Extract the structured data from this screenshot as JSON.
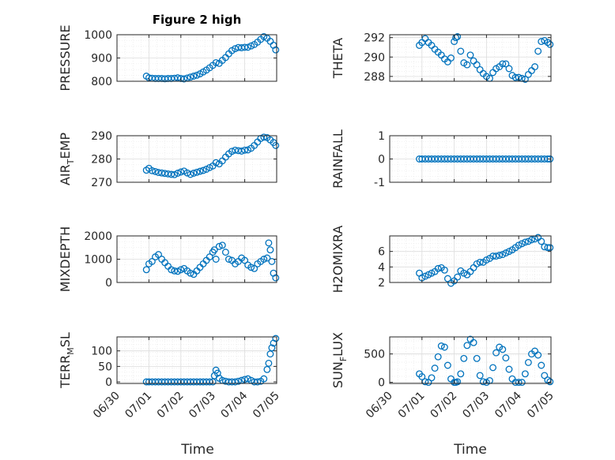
{
  "chart_data": [
    {
      "type": "scatter",
      "title": "Figure 2 high",
      "ylabel": "PRESSURE",
      "ylim": [
        800,
        1000
      ],
      "yticks": [
        "800",
        "900",
        "1000"
      ],
      "xlim": [
        0,
        5
      ],
      "xticks": [
        "06/30",
        "07/01",
        "07/02",
        "07/03",
        "07/04",
        "07/05"
      ],
      "grid": true,
      "x": [
        0.92,
        1.0,
        1.1,
        1.2,
        1.3,
        1.4,
        1.5,
        1.6,
        1.7,
        1.8,
        1.9,
        2.0,
        2.1,
        2.2,
        2.3,
        2.4,
        2.5,
        2.6,
        2.7,
        2.8,
        2.9,
        3.0,
        3.1,
        3.2,
        3.3,
        3.4,
        3.5,
        3.6,
        3.7,
        3.8,
        3.9,
        4.0,
        4.1,
        4.2,
        4.3,
        4.4,
        4.5,
        4.6,
        4.7,
        4.8,
        4.9,
        4.97
      ],
      "y": [
        822,
        815,
        813,
        812,
        812,
        812,
        811,
        812,
        812,
        813,
        815,
        812,
        810,
        814,
        818,
        822,
        826,
        832,
        840,
        848,
        858,
        868,
        880,
        877,
        890,
        902,
        918,
        932,
        940,
        945,
        944,
        946,
        946,
        952,
        958,
        968,
        980,
        992,
        985,
        972,
        955,
        935
      ]
    },
    {
      "type": "scatter",
      "title": "",
      "ylabel": "THETA",
      "ylim": [
        287.5,
        292.3
      ],
      "yticks": [
        "288",
        "290",
        "292"
      ],
      "xlim": [
        0,
        5
      ],
      "xticks": [
        "06/30",
        "07/01",
        "07/02",
        "07/03",
        "07/04",
        "07/05"
      ],
      "grid": true,
      "x": [
        0.92,
        1.0,
        1.1,
        1.2,
        1.3,
        1.4,
        1.5,
        1.6,
        1.7,
        1.8,
        1.9,
        2.0,
        2.05,
        2.1,
        2.2,
        2.3,
        2.4,
        2.5,
        2.6,
        2.7,
        2.8,
        2.9,
        3.0,
        3.1,
        3.2,
        3.3,
        3.4,
        3.5,
        3.6,
        3.7,
        3.8,
        3.9,
        4.0,
        4.1,
        4.2,
        4.3,
        4.4,
        4.5,
        4.6,
        4.7,
        4.8,
        4.9,
        4.97
      ],
      "y": [
        291.2,
        291.5,
        291.9,
        291.5,
        291.2,
        290.8,
        290.5,
        290.2,
        289.8,
        289.5,
        289.9,
        291.6,
        292.0,
        292.1,
        290.6,
        289.4,
        289.2,
        290.2,
        289.6,
        289.2,
        288.7,
        288.3,
        288.0,
        287.8,
        288.4,
        288.8,
        289.0,
        289.3,
        289.3,
        288.8,
        288.1,
        287.9,
        287.9,
        287.8,
        287.7,
        288.2,
        288.6,
        289.0,
        290.6,
        291.6,
        291.7,
        291.5,
        291.3
      ]
    },
    {
      "type": "scatter",
      "title": "",
      "ylabel": "AIR_TEMP",
      "ylim": [
        270,
        290
      ],
      "yticks": [
        "270",
        "280",
        "290"
      ],
      "xlim": [
        0,
        5
      ],
      "xticks": [
        "06/30",
        "07/01",
        "07/02",
        "07/03",
        "07/04",
        "07/05"
      ],
      "grid": true,
      "x": [
        0.92,
        1.0,
        1.1,
        1.2,
        1.3,
        1.4,
        1.5,
        1.6,
        1.7,
        1.8,
        1.9,
        2.0,
        2.1,
        2.2,
        2.3,
        2.4,
        2.5,
        2.6,
        2.7,
        2.8,
        2.9,
        3.0,
        3.1,
        3.2,
        3.3,
        3.4,
        3.5,
        3.6,
        3.7,
        3.8,
        3.9,
        4.0,
        4.1,
        4.2,
        4.3,
        4.4,
        4.5,
        4.6,
        4.7,
        4.8,
        4.9,
        4.97
      ],
      "y": [
        275.2,
        276.0,
        275.0,
        274.6,
        274.2,
        274.0,
        273.8,
        273.6,
        273.4,
        273.3,
        273.9,
        274.4,
        274.8,
        274.0,
        273.4,
        273.9,
        274.3,
        274.7,
        275.1,
        275.6,
        276.3,
        277.0,
        278.4,
        277.9,
        279.2,
        280.8,
        282.2,
        283.3,
        283.8,
        283.6,
        283.4,
        283.8,
        283.9,
        284.6,
        285.8,
        287.3,
        288.8,
        289.4,
        289.2,
        288.2,
        287.1,
        285.8
      ]
    },
    {
      "type": "scatter",
      "title": "",
      "ylabel": "RAINFALL",
      "ylim": [
        -1,
        1
      ],
      "yticks": [
        "-1",
        "0",
        "1"
      ],
      "xlim": [
        0,
        5
      ],
      "xticks": [
        "06/30",
        "07/01",
        "07/02",
        "07/03",
        "07/04",
        "07/05"
      ],
      "grid": true,
      "x": [
        0.92,
        1.0,
        1.1,
        1.2,
        1.3,
        1.4,
        1.5,
        1.6,
        1.7,
        1.8,
        1.9,
        2.0,
        2.1,
        2.2,
        2.3,
        2.4,
        2.5,
        2.6,
        2.7,
        2.8,
        2.9,
        3.0,
        3.1,
        3.2,
        3.3,
        3.4,
        3.5,
        3.6,
        3.7,
        3.8,
        3.9,
        4.0,
        4.1,
        4.2,
        4.3,
        4.4,
        4.5,
        4.6,
        4.7,
        4.8,
        4.9,
        4.97
      ],
      "y": [
        0,
        0,
        0,
        0,
        0,
        0,
        0,
        0,
        0,
        0,
        0,
        0,
        0,
        0,
        0,
        0,
        0,
        0,
        0,
        0,
        0,
        0,
        0,
        0,
        0,
        0,
        0,
        0,
        0,
        0,
        0,
        0,
        0,
        0,
        0,
        0,
        0,
        0,
        0,
        0,
        0,
        0
      ]
    },
    {
      "type": "scatter",
      "title": "",
      "ylabel": "MIXDEPTH",
      "ylim": [
        0,
        2000
      ],
      "yticks": [
        "0",
        "1000",
        "2000"
      ],
      "xlim": [
        0,
        5
      ],
      "xticks": [
        "06/30",
        "07/01",
        "07/02",
        "07/03",
        "07/04",
        "07/05"
      ],
      "grid": true,
      "x": [
        0.92,
        1.0,
        1.1,
        1.2,
        1.3,
        1.4,
        1.5,
        1.6,
        1.7,
        1.8,
        1.9,
        2.0,
        2.1,
        2.2,
        2.3,
        2.4,
        2.5,
        2.6,
        2.7,
        2.8,
        2.9,
        3.0,
        3.05,
        3.1,
        3.2,
        3.3,
        3.4,
        3.5,
        3.6,
        3.7,
        3.8,
        3.9,
        4.0,
        4.1,
        4.2,
        4.3,
        4.4,
        4.5,
        4.6,
        4.7,
        4.75,
        4.8,
        4.85,
        4.9,
        4.97
      ],
      "y": [
        550,
        800,
        900,
        1100,
        1200,
        1000,
        850,
        700,
        550,
        500,
        480,
        550,
        600,
        500,
        400,
        350,
        500,
        650,
        800,
        950,
        1100,
        1300,
        1400,
        1000,
        1550,
        1600,
        1300,
        1000,
        950,
        800,
        900,
        1050,
        950,
        750,
        650,
        600,
        800,
        900,
        1000,
        1050,
        1700,
        1400,
        900,
        400,
        200
      ]
    },
    {
      "type": "scatter",
      "title": "",
      "ylabel": "H2OMIXRA",
      "ylim": [
        2,
        8
      ],
      "yticks": [
        "2",
        "4",
        "6"
      ],
      "xlim": [
        0,
        5
      ],
      "xticks": [
        "06/30",
        "07/01",
        "07/02",
        "07/03",
        "07/04",
        "07/05"
      ],
      "grid": true,
      "x": [
        0.92,
        1.0,
        1.1,
        1.2,
        1.3,
        1.4,
        1.5,
        1.6,
        1.7,
        1.8,
        1.9,
        2.0,
        2.1,
        2.2,
        2.3,
        2.4,
        2.5,
        2.6,
        2.7,
        2.8,
        2.9,
        3.0,
        3.1,
        3.2,
        3.3,
        3.4,
        3.5,
        3.6,
        3.7,
        3.8,
        3.9,
        4.0,
        4.1,
        4.2,
        4.3,
        4.4,
        4.5,
        4.6,
        4.7,
        4.8,
        4.9,
        4.97
      ],
      "y": [
        3.2,
        2.6,
        2.8,
        3.0,
        3.2,
        3.4,
        3.8,
        3.9,
        3.6,
        2.5,
        1.9,
        2.2,
        2.7,
        3.5,
        3.2,
        3.0,
        3.4,
        3.9,
        4.4,
        4.6,
        4.6,
        4.9,
        5.1,
        5.4,
        5.4,
        5.5,
        5.6,
        5.8,
        6.0,
        6.2,
        6.5,
        6.8,
        7.0,
        7.2,
        7.3,
        7.5,
        7.6,
        7.8,
        7.3,
        6.6,
        6.5,
        6.5
      ]
    },
    {
      "type": "scatter",
      "title": "",
      "ylabel": "TERR_MSL",
      "ylim": [
        -5,
        145
      ],
      "yticks": [
        "0",
        "50",
        "100"
      ],
      "xlim": [
        0,
        5
      ],
      "xticks": [
        "06/30",
        "07/01",
        "07/02",
        "07/03",
        "07/04",
        "07/05"
      ],
      "grid": true,
      "x": [
        0.92,
        1.0,
        1.1,
        1.2,
        1.3,
        1.4,
        1.5,
        1.6,
        1.7,
        1.8,
        1.9,
        2.0,
        2.1,
        2.2,
        2.3,
        2.4,
        2.5,
        2.6,
        2.7,
        2.8,
        2.9,
        3.0,
        3.05,
        3.1,
        3.15,
        3.2,
        3.3,
        3.4,
        3.5,
        3.6,
        3.7,
        3.8,
        3.9,
        4.0,
        4.1,
        4.2,
        4.3,
        4.4,
        4.5,
        4.6,
        4.7,
        4.75,
        4.8,
        4.85,
        4.9,
        4.97
      ],
      "y": [
        0,
        0,
        0,
        0,
        0,
        0,
        0,
        0,
        0,
        0,
        0,
        0,
        0,
        0,
        0,
        0,
        0,
        0,
        0,
        0,
        0,
        0,
        20,
        38,
        28,
        12,
        5,
        2,
        0,
        0,
        0,
        2,
        5,
        8,
        10,
        5,
        0,
        0,
        2,
        10,
        40,
        60,
        90,
        110,
        125,
        140
      ]
    },
    {
      "type": "scatter",
      "title": "",
      "ylabel": "SUN_FLUX",
      "xlabel": "Time",
      "ylim": [
        -20,
        800
      ],
      "yticks": [
        "0",
        "500"
      ],
      "xlim": [
        0,
        5
      ],
      "xticks": [
        "06/30",
        "07/01",
        "07/02",
        "07/03",
        "07/04",
        "07/05"
      ],
      "grid": true,
      "x": [
        0.92,
        1.0,
        1.1,
        1.2,
        1.3,
        1.4,
        1.5,
        1.6,
        1.7,
        1.8,
        1.9,
        2.0,
        2.05,
        2.1,
        2.2,
        2.3,
        2.4,
        2.5,
        2.6,
        2.7,
        2.8,
        2.9,
        3.0,
        3.1,
        3.2,
        3.3,
        3.4,
        3.5,
        3.6,
        3.7,
        3.8,
        3.9,
        4.0,
        4.1,
        4.2,
        4.3,
        4.4,
        4.5,
        4.6,
        4.7,
        4.8,
        4.9,
        4.97
      ],
      "y": [
        150,
        100,
        10,
        0,
        80,
        250,
        450,
        640,
        620,
        300,
        60,
        0,
        0,
        10,
        150,
        420,
        650,
        760,
        700,
        420,
        120,
        10,
        0,
        30,
        260,
        520,
        620,
        580,
        430,
        230,
        60,
        0,
        0,
        0,
        150,
        350,
        500,
        550,
        480,
        300,
        120,
        40,
        10
      ]
    },
    {
      "type": "scatter",
      "title": "",
      "ylabel": "",
      "xlabel": "Time",
      "xlim": [
        0,
        5
      ],
      "xticks": [],
      "grid": false,
      "x": [],
      "y": []
    }
  ]
}
